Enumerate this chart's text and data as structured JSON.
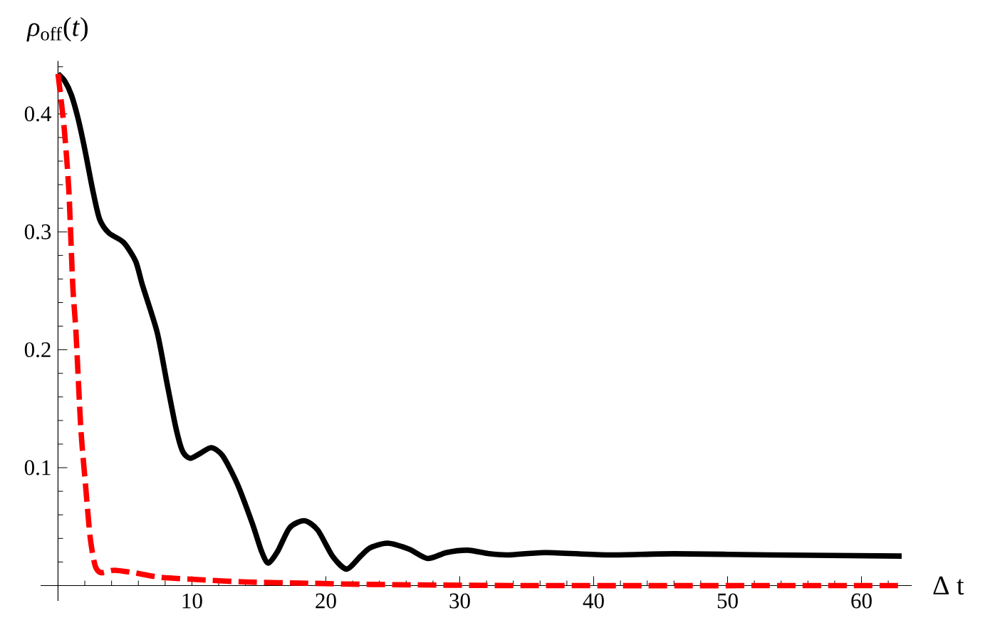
{
  "chart_data": {
    "type": "line",
    "xlabel": "Δ t",
    "ylabel": "*ρ*$_{off}$(*t*)",
    "xlim": [
      -1.3,
      63.75
    ],
    "ylim": [
      -0.013,
      0.445
    ],
    "xticks": [
      {
        "value": 2,
        "label": null
      },
      {
        "value": 4,
        "label": null
      },
      {
        "value": 6,
        "label": null
      },
      {
        "value": 8,
        "label": null
      },
      10,
      {
        "value": 12,
        "label": null
      },
      {
        "value": 14,
        "label": null
      },
      {
        "value": 16,
        "label": null
      },
      {
        "value": 18,
        "label": null
      },
      20,
      {
        "value": 22,
        "label": null
      },
      {
        "value": 24,
        "label": null
      },
      {
        "value": 26,
        "label": null
      },
      {
        "value": 28,
        "label": null
      },
      30,
      {
        "value": 32,
        "label": null
      },
      {
        "value": 34,
        "label": null
      },
      {
        "value": 36,
        "label": null
      },
      {
        "value": 38,
        "label": null
      },
      40,
      {
        "value": 42,
        "label": null
      },
      {
        "value": 44,
        "label": null
      },
      {
        "value": 46,
        "label": null
      },
      {
        "value": 48,
        "label": null
      },
      50,
      {
        "value": 52,
        "label": null
      },
      {
        "value": 54,
        "label": null
      },
      {
        "value": 56,
        "label": null
      },
      {
        "value": 58,
        "label": null
      },
      60,
      {
        "value": 62,
        "label": null
      }
    ],
    "yticks": [
      {
        "value": 0.02,
        "label": null
      },
      {
        "value": 0.04,
        "label": null
      },
      {
        "value": 0.06,
        "label": null
      },
      {
        "value": 0.08,
        "label": null
      },
      0.1,
      {
        "value": 0.12,
        "label": null
      },
      {
        "value": 0.14,
        "label": null
      },
      {
        "value": 0.16,
        "label": null
      },
      {
        "value": 0.18,
        "label": null
      },
      0.2,
      {
        "value": 0.22,
        "label": null
      },
      {
        "value": 0.24,
        "label": null
      },
      {
        "value": 0.26,
        "label": null
      },
      {
        "value": 0.28,
        "label": null
      },
      0.3,
      {
        "value": 0.32,
        "label": null
      },
      {
        "value": 0.34,
        "label": null
      },
      {
        "value": 0.36,
        "label": null
      },
      {
        "value": 0.38,
        "label": null
      },
      0.4,
      {
        "value": 0.42,
        "label": null
      },
      {
        "value": 0.44,
        "label": null
      }
    ],
    "series": [
      {
        "color": "#000000",
        "line_style": "solid",
        "x": [
          0,
          0.5,
          1.0,
          1.5,
          2.0,
          2.6,
          3.1,
          3.8,
          4.9,
          5.8,
          6.3,
          7.4,
          8.1,
          8.8,
          9.3,
          9.85,
          10.6,
          11.45,
          12.3,
          13.4,
          14.5,
          15.2,
          15.7,
          16.4,
          17.3,
          18.4,
          19.4,
          20.5,
          21.55,
          22.6,
          23.3,
          24.6,
          26.2,
          27.6,
          29.0,
          30.6,
          32.2,
          33.6,
          36.5,
          41.1,
          46.0,
          53.1,
          63.0
        ],
        "values": [
          0.434,
          0.428,
          0.416,
          0.396,
          0.37,
          0.335,
          0.311,
          0.299,
          0.291,
          0.275,
          0.255,
          0.215,
          0.174,
          0.134,
          0.114,
          0.108,
          0.112,
          0.117,
          0.11,
          0.086,
          0.053,
          0.029,
          0.019,
          0.029,
          0.049,
          0.055,
          0.047,
          0.025,
          0.014,
          0.025,
          0.032,
          0.036,
          0.031,
          0.023,
          0.028,
          0.03,
          0.027,
          0.026,
          0.028,
          0.026,
          0.027,
          0.026,
          0.025
        ]
      },
      {
        "color": "#ff0000",
        "line_style": "dashed",
        "x": [
          0,
          0.46,
          0.81,
          1.1,
          1.34,
          1.7,
          2.05,
          2.4,
          2.77,
          3.2,
          4.2,
          5.6,
          7.7,
          10.6,
          14.1,
          18.7,
          23.3,
          35,
          63
        ],
        "values": [
          0.434,
          0.388,
          0.335,
          0.255,
          0.215,
          0.134,
          0.086,
          0.041,
          0.017,
          0.011,
          0.013,
          0.011,
          0.007,
          0.005,
          0.003,
          0.002,
          0.001,
          0,
          0
        ]
      }
    ]
  }
}
